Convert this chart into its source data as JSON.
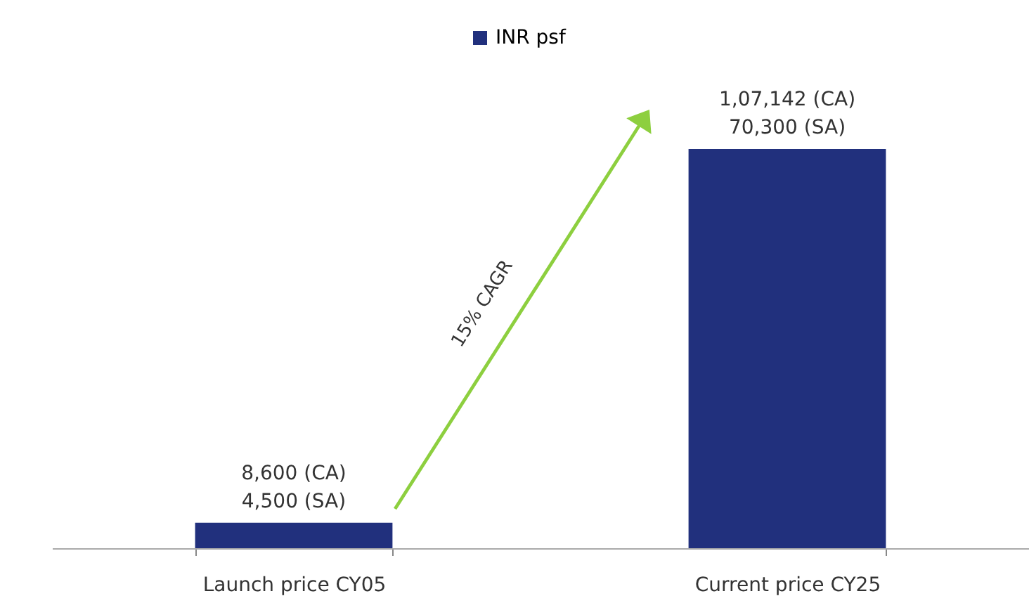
{
  "chart_data": {
    "type": "bar",
    "tick_labels": "x",
    "categories": [
      "Launch price CY05",
      "Current price CY25"
    ],
    "series": [
      {
        "name": "INR psf",
        "color": "#21307d",
        "values": [
          4500,
          70300
        ],
        "value_labels": [
          "8,600 (CA)\n4,500 (SA)",
          "1,07,142 (CA)\n70,300 (SA)"
        ]
      }
    ],
    "annotations": [
      "15% CAGR"
    ],
    "legend": "top",
    "grid": false
  }
}
